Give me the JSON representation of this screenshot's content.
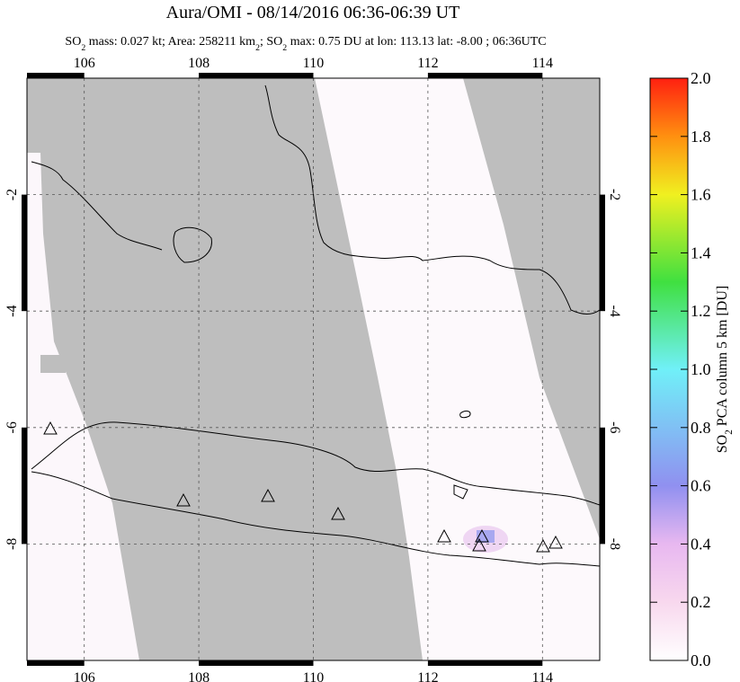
{
  "title": "Aura/OMI - 08/14/2016 06:36-06:39 UT",
  "subtitle": [
    "SO",
    "2",
    " mass: 0.027 kt; Area: 258211 km",
    "2",
    "; SO",
    "2",
    " max: 0.75 DU at lon: 113.13 lat: -8.00 ; 06:36UTC"
  ],
  "map": {
    "xlim": [
      105,
      115
    ],
    "ylim": [
      -10,
      0
    ],
    "xticks": [
      106,
      108,
      110,
      112,
      114
    ],
    "yticks": [
      -2,
      -4,
      -6,
      -8
    ]
  },
  "colorbar": {
    "label": [
      "SO",
      "2",
      " PCA column 5 km [DU]"
    ],
    "lim": [
      0,
      2
    ],
    "ticks": [
      {
        "value": 0,
        "label": "0.0"
      },
      {
        "value": 0.2,
        "label": "0.2"
      },
      {
        "value": 0.4,
        "label": "0.4"
      },
      {
        "value": 0.6,
        "label": "0.6"
      },
      {
        "value": 0.8,
        "label": "0.8"
      },
      {
        "value": 1,
        "label": "1.0"
      },
      {
        "value": 1.2,
        "label": "1.2"
      },
      {
        "value": 1.4,
        "label": "1.4"
      },
      {
        "value": 1.6,
        "label": "1.6"
      },
      {
        "value": 1.8,
        "label": "1.8"
      },
      {
        "value": 2,
        "label": "2.0"
      }
    ]
  }
}
